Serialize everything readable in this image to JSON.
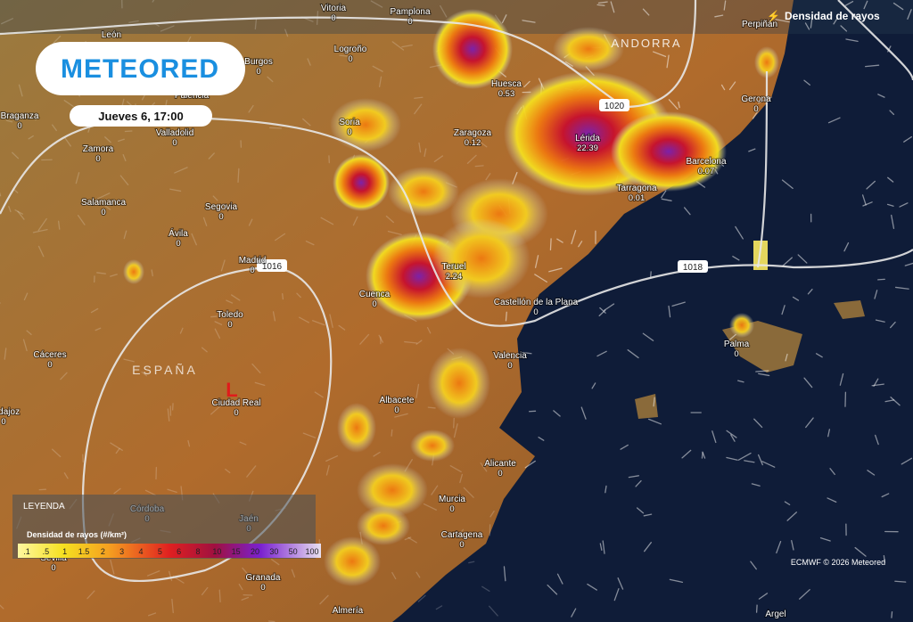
{
  "header": {
    "logo": "METEORED",
    "date": "Jueves 6, 17:00",
    "title": "Densidad de rayos"
  },
  "map": {
    "country": "ESPAÑA",
    "andorra": "ANDORRA",
    "low": "L",
    "isobars": [
      "1020",
      "1018",
      "1016"
    ],
    "cities": [
      {
        "name": "Vitoria",
        "value": "0"
      },
      {
        "name": "Pamplona",
        "value": "0"
      },
      {
        "name": "León"
      },
      {
        "name": "Logroño",
        "value": "0"
      },
      {
        "name": "Burgos",
        "value": "0"
      },
      {
        "name": "Palencia"
      },
      {
        "name": "Huesca",
        "value": "0.53"
      },
      {
        "name": "Perpiñán"
      },
      {
        "name": "Gerona",
        "value": "0"
      },
      {
        "name": "Braganza",
        "value": "0"
      },
      {
        "name": "Soria",
        "value": "0"
      },
      {
        "name": "Valladolid",
        "value": "0"
      },
      {
        "name": "Zaragoza",
        "value": "0.12"
      },
      {
        "name": "Lérida",
        "value": "22.39"
      },
      {
        "name": "Zamora",
        "value": "0"
      },
      {
        "name": "Barcelona",
        "value": "0.07"
      },
      {
        "name": "Tarragona",
        "value": "0.01"
      },
      {
        "name": "Salamanca",
        "value": "0"
      },
      {
        "name": "Segovia",
        "value": "0"
      },
      {
        "name": "Ávila",
        "value": "0"
      },
      {
        "name": "Madrid",
        "value": "0"
      },
      {
        "name": "Teruel",
        "value": "2.24"
      },
      {
        "name": "Cuenca",
        "value": "0"
      },
      {
        "name": "Castellón de la Plana",
        "value": "0"
      },
      {
        "name": "Toledo",
        "value": "0"
      },
      {
        "name": "Palma",
        "value": "0"
      },
      {
        "name": "Cáceres",
        "value": "0"
      },
      {
        "name": "Valencia",
        "value": "0"
      },
      {
        "name": "Ciudad Real",
        "value": "0"
      },
      {
        "name": "Badajoz",
        "value": "0"
      },
      {
        "name": "Albacete",
        "value": "0"
      },
      {
        "name": "Alicante",
        "value": "0"
      },
      {
        "name": "Córdoba",
        "value": "0"
      },
      {
        "name": "Jaén",
        "value": "0"
      },
      {
        "name": "Murcia",
        "value": "0"
      },
      {
        "name": "Cartagena",
        "value": "0"
      },
      {
        "name": "Sevilla",
        "value": "0"
      },
      {
        "name": "Granada",
        "value": "0"
      },
      {
        "name": "Almería"
      },
      {
        "name": "Argel"
      }
    ]
  },
  "legend": {
    "title": "LEYENDA",
    "label": "Densidad de rayos (#/km²)",
    "ticks": [
      ".1",
      ".5",
      "1",
      "1.5",
      "2",
      "3",
      "4",
      "5",
      "6",
      "8",
      "10",
      "15",
      "20",
      "30",
      "50",
      "100"
    ]
  },
  "credit": "ECMWF © 2026 Meteored"
}
